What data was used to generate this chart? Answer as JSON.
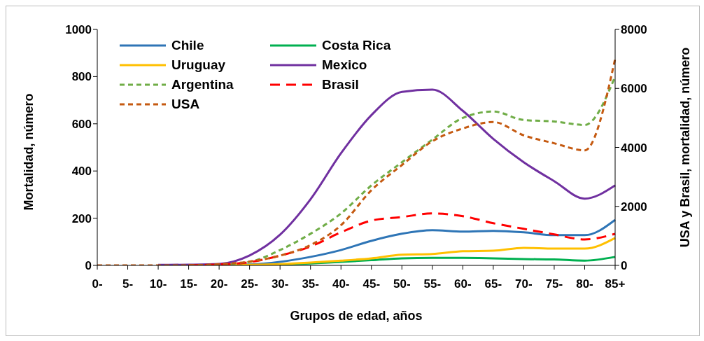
{
  "chart_data": {
    "type": "line",
    "xlabel": "Grupos de edad, años",
    "ylabel": "Mortalidad, número",
    "y2label": "USA y Brasil, mortalidad, número",
    "categories": [
      "0-",
      "5-",
      "10-",
      "15-",
      "20-",
      "25-",
      "30-",
      "35-",
      "40-",
      "45-",
      "50-",
      "55-",
      "60-",
      "65-",
      "70-",
      "75-",
      "80-",
      "85+"
    ],
    "ylim": [
      0,
      1000
    ],
    "yticks": [
      0,
      200,
      400,
      600,
      800,
      1000
    ],
    "y2lim": [
      0,
      8000
    ],
    "y2ticks": [
      0,
      2000,
      4000,
      6000,
      8000
    ],
    "grid": false,
    "legend": "top left",
    "marker": "none",
    "series": [
      {
        "name": "Chile",
        "color": "#2e75b6",
        "line_style": "solid",
        "values": [
          null,
          null,
          null,
          null,
          2,
          4,
          15,
          36,
          65,
          104,
          134,
          149,
          143,
          146,
          140,
          128,
          128,
          193
        ]
      },
      {
        "name": "Costa Rica",
        "color": "#00b050",
        "line_style": "solid",
        "values": [
          null,
          null,
          null,
          null,
          null,
          null,
          3,
          8,
          15,
          22,
          30,
          32,
          32,
          30,
          27,
          25,
          20,
          36
        ]
      },
      {
        "name": "Uruguay",
        "color": "#ffc000",
        "line_style": "solid",
        "values": [
          null,
          null,
          null,
          null,
          1,
          2,
          5,
          12,
          20,
          30,
          45,
          48,
          60,
          62,
          74,
          71,
          71,
          116
        ]
      },
      {
        "name": "Mexico",
        "color": "#7030a0",
        "line_style": "solid",
        "values": [
          null,
          null,
          2,
          3,
          6,
          42,
          130,
          280,
          475,
          637,
          735,
          745,
          655,
          536,
          437,
          357,
          283,
          339
        ]
      },
      {
        "name": "Argentina",
        "color": "#70ad47",
        "line_style": "dashed",
        "values": [
          null,
          null,
          null,
          1,
          3,
          15,
          65,
          134,
          220,
          339,
          437,
          533,
          625,
          652,
          616,
          610,
          595,
          800
        ]
      },
      {
        "name": "Brasil",
        "color": "#ff0000",
        "line_style": "dashed",
        "axis": "y2",
        "values": [
          null,
          null,
          null,
          0,
          30,
          110,
          330,
          640,
          1120,
          1520,
          1640,
          1760,
          1670,
          1430,
          1240,
          1050,
          880,
          1070
        ]
      },
      {
        "name": "USA",
        "color": "#c55a11",
        "line_style": "dashed",
        "axis": "y2",
        "values": [
          0,
          0,
          0,
          0,
          40,
          130,
          330,
          690,
          1360,
          2550,
          3400,
          4210,
          4640,
          4860,
          4410,
          4140,
          3900,
          7000
        ]
      }
    ]
  }
}
